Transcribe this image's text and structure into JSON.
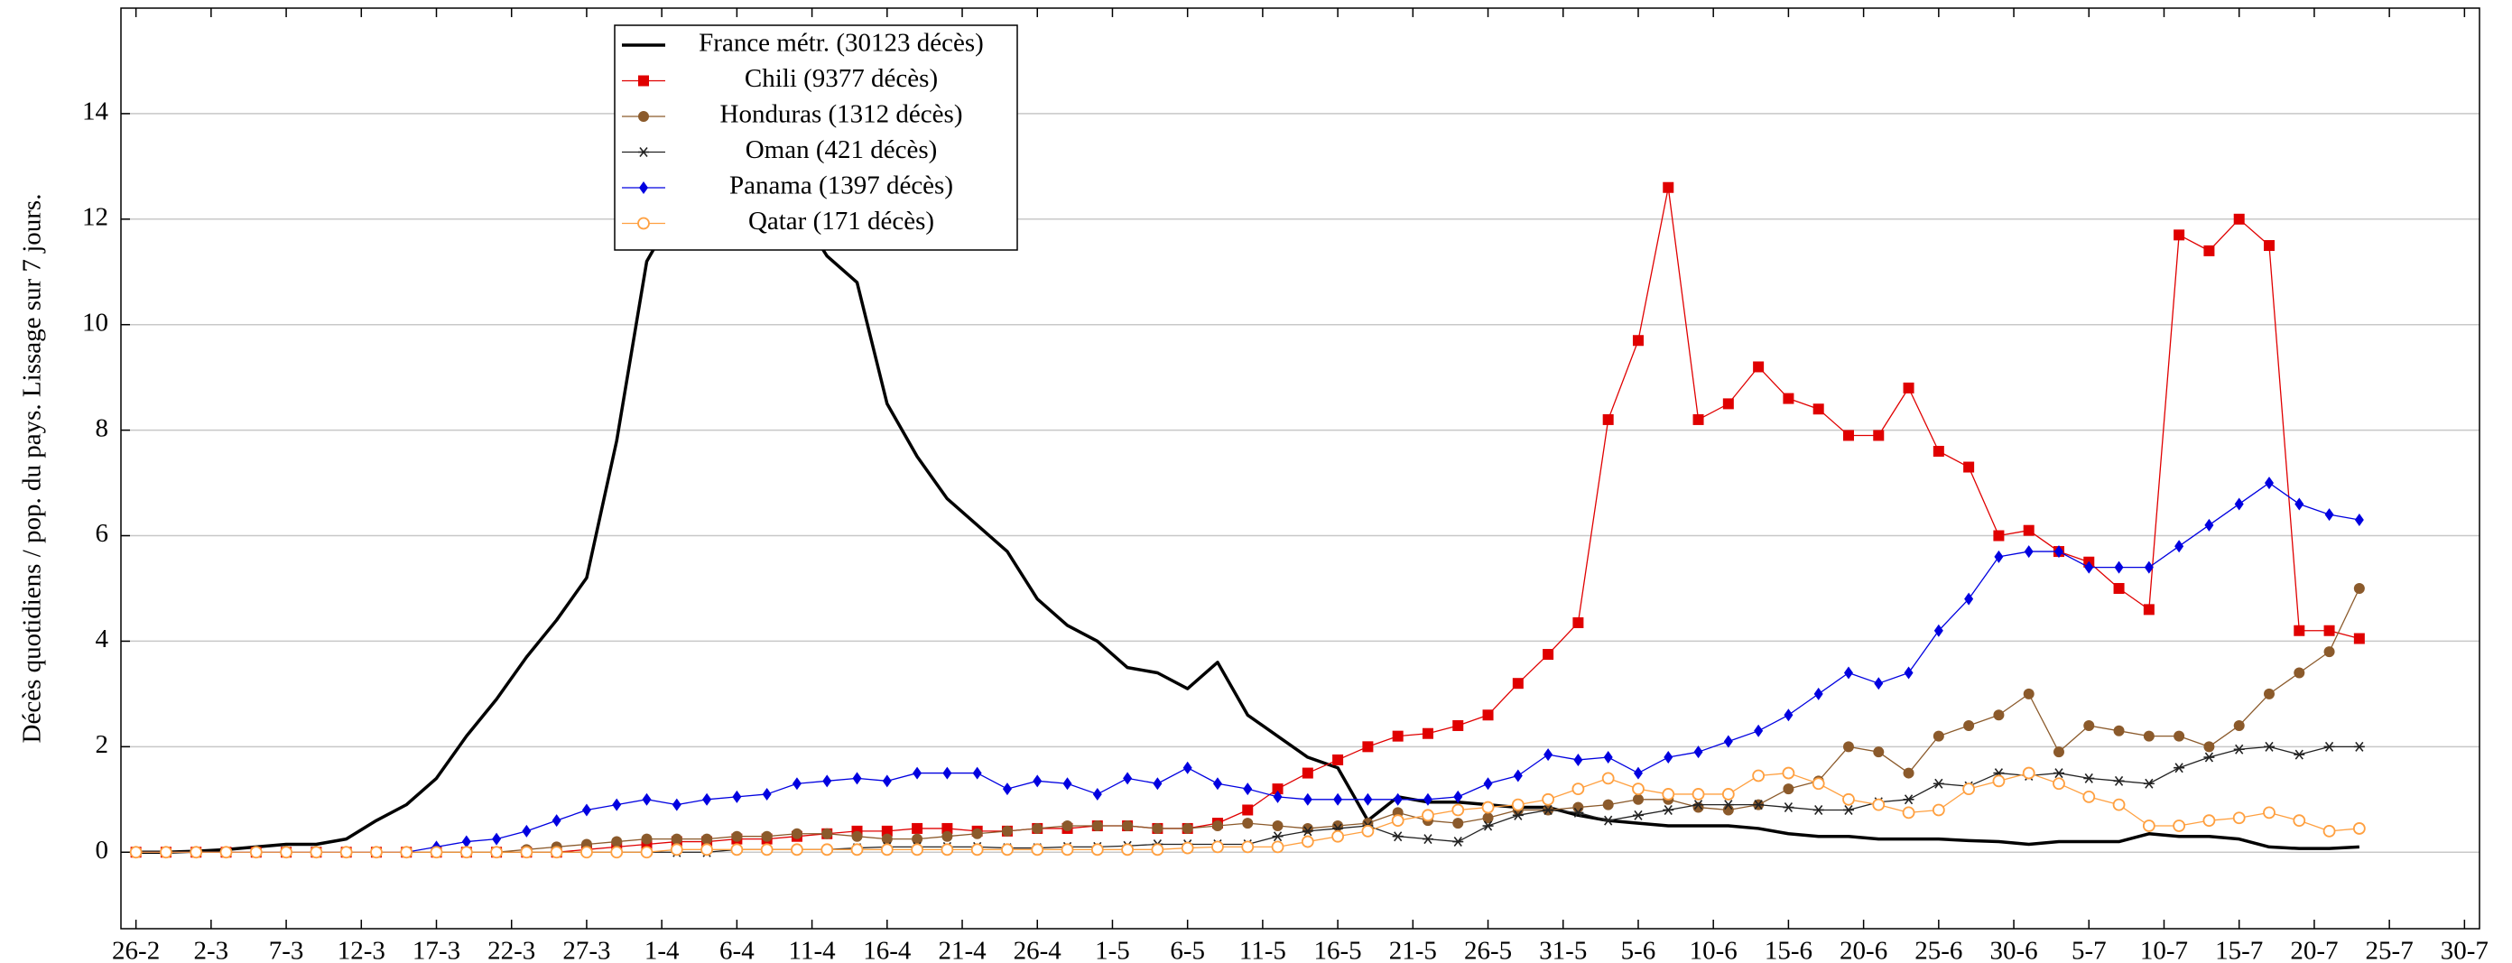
{
  "chart_data": {
    "type": "line",
    "y_label": "Décès quotidiens / pop. du pays. Lissage sur 7 jours.",
    "x": [
      0,
      2,
      4,
      6,
      8,
      10,
      12,
      14,
      16,
      18,
      20,
      22,
      24,
      26,
      28,
      30,
      32,
      34,
      36,
      38,
      40,
      42,
      44,
      46,
      48,
      50,
      52,
      54,
      56,
      58,
      60,
      62,
      64,
      66,
      68,
      70,
      72,
      74,
      76,
      78,
      80,
      82,
      84,
      86,
      88,
      90,
      92,
      94,
      96,
      98,
      100,
      102,
      104,
      106,
      108,
      110,
      112,
      114,
      116,
      118,
      120,
      122,
      124,
      126,
      128,
      130,
      132,
      134,
      136,
      138,
      140,
      142,
      144,
      146,
      148
    ],
    "xlim": [
      -1,
      156
    ],
    "xticks": [
      {
        "value": 0,
        "label": "26-2"
      },
      {
        "value": 5,
        "label": "2-3"
      },
      {
        "value": 10,
        "label": "7-3"
      },
      {
        "value": 15,
        "label": "12-3"
      },
      {
        "value": 20,
        "label": "17-3"
      },
      {
        "value": 25,
        "label": "22-3"
      },
      {
        "value": 30,
        "label": "27-3"
      },
      {
        "value": 35,
        "label": "1-4"
      },
      {
        "value": 40,
        "label": "6-4"
      },
      {
        "value": 45,
        "label": "11-4"
      },
      {
        "value": 50,
        "label": "16-4"
      },
      {
        "value": 55,
        "label": "21-4"
      },
      {
        "value": 60,
        "label": "26-4"
      },
      {
        "value": 65,
        "label": "1-5"
      },
      {
        "value": 70,
        "label": "6-5"
      },
      {
        "value": 75,
        "label": "11-5"
      },
      {
        "value": 80,
        "label": "16-5"
      },
      {
        "value": 85,
        "label": "21-5"
      },
      {
        "value": 90,
        "label": "26-5"
      },
      {
        "value": 95,
        "label": "31-5"
      },
      {
        "value": 100,
        "label": "5-6"
      },
      {
        "value": 105,
        "label": "10-6"
      },
      {
        "value": 110,
        "label": "15-6"
      },
      {
        "value": 115,
        "label": "20-6"
      },
      {
        "value": 120,
        "label": "25-6"
      },
      {
        "value": 125,
        "label": "30-6"
      },
      {
        "value": 130,
        "label": "5-7"
      },
      {
        "value": 135,
        "label": "10-7"
      },
      {
        "value": 140,
        "label": "15-7"
      },
      {
        "value": 145,
        "label": "20-7"
      },
      {
        "value": 150,
        "label": "25-7"
      },
      {
        "value": 155,
        "label": "30-7"
      }
    ],
    "ylim": [
      -1.45,
      16
    ],
    "yticks": [
      0,
      2,
      4,
      6,
      8,
      10,
      12,
      14
    ],
    "grid": true,
    "legend": "top-left",
    "series": [
      {
        "name": "France métr. (30123 décès)",
        "color": "#000000",
        "marker": "none",
        "values": [
          0,
          0,
          0.02,
          0.05,
          0.1,
          0.15,
          0.15,
          0.25,
          0.6,
          0.9,
          1.4,
          2.2,
          2.9,
          3.7,
          4.4,
          5.2,
          7.8,
          11.2,
          12.2,
          12.6,
          12.8,
          12.6,
          12.2,
          11.3,
          10.8,
          8.5,
          7.5,
          6.7,
          6.2,
          5.7,
          4.8,
          4.3,
          4.0,
          3.5,
          3.4,
          3.1,
          3.6,
          2.6,
          2.2,
          1.8,
          1.6,
          0.6,
          1.05,
          0.95,
          0.95,
          0.9,
          0.85,
          0.85,
          0.7,
          0.6,
          0.55,
          0.5,
          0.5,
          0.5,
          0.45,
          0.35,
          0.3,
          0.3,
          0.25,
          0.25,
          0.25,
          0.22,
          0.2,
          0.15,
          0.2,
          0.2,
          0.2,
          0.35,
          0.3,
          0.3,
          0.25,
          0.1,
          0.07,
          0.07,
          0.1
        ]
      },
      {
        "name": "Chili (9377 décès)",
        "color": "#e00000",
        "marker": "square",
        "values": [
          0,
          0,
          0,
          0,
          0,
          0,
          0,
          0,
          0,
          0,
          0,
          0,
          0,
          0,
          0,
          0.05,
          0.1,
          0.15,
          0.2,
          0.2,
          0.25,
          0.25,
          0.3,
          0.35,
          0.4,
          0.4,
          0.45,
          0.45,
          0.4,
          0.4,
          0.45,
          0.45,
          0.5,
          0.5,
          0.45,
          0.45,
          0.55,
          0.8,
          1.2,
          1.5,
          1.75,
          2.0,
          2.2,
          2.25,
          2.4,
          2.6,
          3.2,
          3.75,
          4.35,
          8.2,
          9.7,
          12.6,
          8.2,
          8.5,
          9.2,
          8.6,
          8.4,
          7.9,
          7.9,
          8.8,
          7.6,
          7.3,
          6.0,
          6.1,
          5.7,
          5.5,
          5.0,
          4.6,
          11.7,
          11.4,
          12.0,
          11.5,
          4.2,
          4.2,
          4.05
        ]
      },
      {
        "name": "Honduras (1312 décès)",
        "color": "#8b5a2b",
        "marker": "circle",
        "values": [
          0,
          0,
          0,
          0,
          0,
          0,
          0,
          0,
          0,
          0,
          0,
          0,
          0,
          0.05,
          0.1,
          0.15,
          0.2,
          0.25,
          0.25,
          0.25,
          0.3,
          0.3,
          0.35,
          0.35,
          0.3,
          0.25,
          0.25,
          0.3,
          0.35,
          0.4,
          0.45,
          0.5,
          0.5,
          0.5,
          0.45,
          0.45,
          0.5,
          0.55,
          0.5,
          0.45,
          0.5,
          0.55,
          0.75,
          0.6,
          0.55,
          0.65,
          0.8,
          0.8,
          0.85,
          0.9,
          1.0,
          1.0,
          0.85,
          0.8,
          0.9,
          1.2,
          1.35,
          2.0,
          1.9,
          1.5,
          2.2,
          2.4,
          2.6,
          3.0,
          1.9,
          2.4,
          2.3,
          2.2,
          2.2,
          2.0,
          2.4,
          3.0,
          3.4,
          3.8,
          5.0
        ]
      },
      {
        "name": "Oman (421 décès)",
        "color": "#222222",
        "marker": "star",
        "values": [
          0,
          0,
          0,
          0,
          0,
          0,
          0,
          0,
          0,
          0,
          0,
          0,
          0,
          0,
          0,
          0,
          0,
          0,
          0,
          0,
          0.05,
          0.05,
          0.05,
          0.05,
          0.08,
          0.1,
          0.1,
          0.1,
          0.1,
          0.08,
          0.08,
          0.1,
          0.1,
          0.12,
          0.15,
          0.15,
          0.15,
          0.15,
          0.3,
          0.4,
          0.45,
          0.5,
          0.3,
          0.25,
          0.2,
          0.5,
          0.7,
          0.8,
          0.75,
          0.6,
          0.7,
          0.8,
          0.9,
          0.9,
          0.9,
          0.85,
          0.8,
          0.8,
          0.95,
          1.0,
          1.3,
          1.25,
          1.5,
          1.45,
          1.5,
          1.4,
          1.35,
          1.3,
          1.6,
          1.8,
          1.95,
          2.0,
          1.85,
          2.0,
          2.0
        ]
      },
      {
        "name": "Panama (1397 décès)",
        "color": "#0000e0",
        "marker": "diamond",
        "values": [
          0,
          0,
          0,
          0,
          0,
          0,
          0,
          0,
          0,
          0,
          0.1,
          0.2,
          0.25,
          0.4,
          0.6,
          0.8,
          0.9,
          1.0,
          0.9,
          1.0,
          1.05,
          1.1,
          1.3,
          1.35,
          1.4,
          1.35,
          1.5,
          1.5,
          1.5,
          1.2,
          1.35,
          1.3,
          1.1,
          1.4,
          1.3,
          1.6,
          1.3,
          1.2,
          1.05,
          1.0,
          1.0,
          1.0,
          1.0,
          1.0,
          1.05,
          1.3,
          1.45,
          1.85,
          1.75,
          1.8,
          1.5,
          1.8,
          1.9,
          2.1,
          2.3,
          2.6,
          3.0,
          3.4,
          3.2,
          3.4,
          4.2,
          4.8,
          5.6,
          5.7,
          5.7,
          5.4,
          5.4,
          5.4,
          5.8,
          6.2,
          6.6,
          7.0,
          6.6,
          6.4,
          6.3
        ]
      },
      {
        "name": "Qatar (171 décès)",
        "color": "#ffa040",
        "marker": "open-circle",
        "values": [
          0,
          0,
          0,
          0,
          0,
          0,
          0,
          0,
          0,
          0,
          0,
          0,
          0,
          0,
          0,
          0,
          0,
          0,
          0.05,
          0.05,
          0.05,
          0.05,
          0.05,
          0.05,
          0.05,
          0.05,
          0.05,
          0.05,
          0.05,
          0.05,
          0.05,
          0.05,
          0.05,
          0.05,
          0.05,
          0.08,
          0.1,
          0.1,
          0.1,
          0.2,
          0.3,
          0.4,
          0.6,
          0.7,
          0.8,
          0.85,
          0.9,
          1.0,
          1.2,
          1.4,
          1.2,
          1.1,
          1.1,
          1.1,
          1.45,
          1.5,
          1.3,
          1.0,
          0.9,
          0.75,
          0.8,
          1.2,
          1.35,
          1.5,
          1.3,
          1.05,
          0.9,
          0.5,
          0.5,
          0.6,
          0.65,
          0.75,
          0.6,
          0.4,
          0.45
        ]
      }
    ]
  }
}
